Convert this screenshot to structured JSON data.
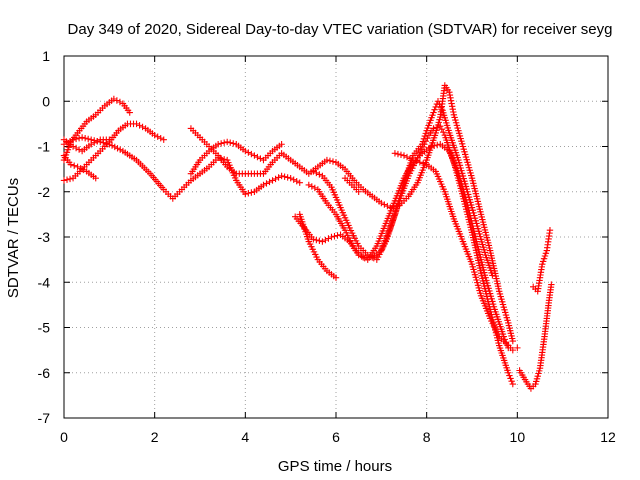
{
  "chart_data": {
    "type": "scatter",
    "title": "Day 349 of 2020, Sidereal Day-to-day VTEC variation (SDTVAR) for receiver seyg",
    "xlabel": "GPS time / hours",
    "ylabel": "SDTVAR / TECUs",
    "xlim": [
      0,
      12
    ],
    "ylim": [
      -7,
      1
    ],
    "xticks": [
      "0",
      "2",
      "4",
      "6",
      "8",
      "10",
      "12"
    ],
    "yticks": [
      "1",
      "0",
      "-1",
      "-2",
      "-3",
      "-4",
      "-5",
      "-6",
      "-7"
    ],
    "grid": true,
    "legend": "none",
    "marker": "+",
    "color": "#ff0000",
    "series": [
      {
        "points": [
          [
            0.0,
            -1.75
          ],
          [
            0.2,
            -1.7
          ],
          [
            0.4,
            -1.5
          ],
          [
            0.6,
            -1.3
          ],
          [
            0.8,
            -1.1
          ],
          [
            1.0,
            -0.9
          ],
          [
            1.2,
            -0.65
          ],
          [
            1.4,
            -0.5
          ],
          [
            1.6,
            -0.5
          ],
          [
            1.8,
            -0.6
          ],
          [
            2.0,
            -0.75
          ],
          [
            2.2,
            -0.85
          ]
        ]
      },
      {
        "points": [
          [
            0.0,
            -1.3
          ],
          [
            0.15,
            -0.9
          ],
          [
            0.3,
            -0.7
          ],
          [
            0.5,
            -0.45
          ],
          [
            0.7,
            -0.3
          ],
          [
            0.9,
            -0.1
          ],
          [
            1.1,
            0.05
          ],
          [
            1.3,
            -0.05
          ],
          [
            1.45,
            -0.25
          ]
        ]
      },
      {
        "points": [
          [
            0.0,
            -1.2
          ],
          [
            0.15,
            -1.4
          ],
          [
            0.3,
            -1.45
          ],
          [
            0.5,
            -1.55
          ],
          [
            0.7,
            -1.7
          ]
        ]
      },
      {
        "points": [
          [
            0.0,
            -0.95
          ],
          [
            0.2,
            -0.85
          ],
          [
            0.4,
            -0.8
          ],
          [
            0.6,
            -0.85
          ],
          [
            0.8,
            -0.9
          ],
          [
            1.0,
            -0.95
          ],
          [
            1.3,
            -1.1
          ],
          [
            1.6,
            -1.3
          ],
          [
            1.9,
            -1.6
          ],
          [
            2.2,
            -1.95
          ],
          [
            2.4,
            -2.15
          ],
          [
            2.6,
            -1.95
          ],
          [
            2.8,
            -1.75
          ],
          [
            3.0,
            -1.6
          ],
          [
            3.2,
            -1.45
          ],
          [
            3.4,
            -1.25
          ],
          [
            3.6,
            -1.3
          ],
          [
            3.8,
            -1.75
          ],
          [
            4.0,
            -2.05
          ],
          [
            4.2,
            -2.0
          ],
          [
            4.4,
            -1.85
          ],
          [
            4.6,
            -1.75
          ],
          [
            4.8,
            -1.65
          ],
          [
            5.0,
            -1.7
          ],
          [
            5.2,
            -1.8
          ]
        ]
      },
      {
        "points": [
          [
            0.0,
            -0.85
          ],
          [
            0.2,
            -1.0
          ],
          [
            0.4,
            -1.1
          ],
          [
            0.6,
            -0.95
          ],
          [
            0.8,
            -0.85
          ],
          [
            1.0,
            -0.85
          ]
        ]
      },
      {
        "points": [
          [
            2.8,
            -0.6
          ],
          [
            3.0,
            -0.8
          ],
          [
            3.2,
            -1.0
          ],
          [
            3.4,
            -1.2
          ],
          [
            3.6,
            -1.45
          ],
          [
            3.8,
            -1.6
          ],
          [
            4.0,
            -1.6
          ],
          [
            4.2,
            -1.6
          ],
          [
            4.4,
            -1.6
          ],
          [
            4.6,
            -1.35
          ],
          [
            4.8,
            -1.15
          ],
          [
            5.0,
            -1.3
          ],
          [
            5.2,
            -1.45
          ],
          [
            5.4,
            -1.6
          ],
          [
            5.6,
            -1.45
          ],
          [
            5.8,
            -1.3
          ],
          [
            6.0,
            -1.35
          ],
          [
            6.2,
            -1.5
          ],
          [
            6.4,
            -1.75
          ],
          [
            6.6,
            -1.95
          ],
          [
            6.8,
            -2.1
          ],
          [
            7.0,
            -2.25
          ],
          [
            7.2,
            -2.35
          ],
          [
            7.4,
            -2.3
          ],
          [
            7.6,
            -2.1
          ],
          [
            7.8,
            -1.8
          ],
          [
            8.0,
            -1.3
          ],
          [
            8.2,
            -0.7
          ],
          [
            8.3,
            -0.35
          ],
          [
            8.4,
            0.35
          ],
          [
            8.5,
            0.2
          ],
          [
            8.6,
            -0.3
          ],
          [
            8.8,
            -1.0
          ],
          [
            9.0,
            -1.7
          ],
          [
            9.2,
            -2.5
          ],
          [
            9.4,
            -3.3
          ],
          [
            9.6,
            -4.2
          ],
          [
            9.8,
            -4.9
          ],
          [
            9.9,
            -5.3
          ]
        ]
      },
      {
        "points": [
          [
            2.8,
            -1.6
          ],
          [
            3.0,
            -1.3
          ],
          [
            3.2,
            -1.1
          ],
          [
            3.4,
            -0.95
          ],
          [
            3.6,
            -0.9
          ],
          [
            3.8,
            -0.95
          ],
          [
            4.0,
            -1.1
          ],
          [
            4.2,
            -1.2
          ],
          [
            4.4,
            -1.3
          ],
          [
            4.6,
            -1.1
          ],
          [
            4.8,
            -0.95
          ]
        ]
      },
      {
        "points": [
          [
            5.1,
            -2.55
          ],
          [
            5.3,
            -2.8
          ],
          [
            5.5,
            -3.05
          ],
          [
            5.7,
            -3.1
          ],
          [
            5.9,
            -3.0
          ],
          [
            6.1,
            -2.95
          ],
          [
            6.3,
            -3.1
          ],
          [
            6.5,
            -3.4
          ],
          [
            6.7,
            -3.5
          ],
          [
            6.9,
            -3.2
          ],
          [
            7.1,
            -2.7
          ],
          [
            7.3,
            -2.2
          ],
          [
            7.5,
            -1.7
          ],
          [
            7.7,
            -1.35
          ],
          [
            7.9,
            -1.15
          ],
          [
            8.1,
            -1.0
          ],
          [
            8.3,
            -0.95
          ],
          [
            8.5,
            -1.1
          ],
          [
            8.7,
            -1.6
          ],
          [
            8.9,
            -2.3
          ],
          [
            9.1,
            -3.1
          ],
          [
            9.3,
            -3.9
          ],
          [
            9.5,
            -4.6
          ],
          [
            9.7,
            -5.2
          ],
          [
            9.8,
            -5.45
          ]
        ]
      },
      {
        "points": [
          [
            5.2,
            -2.5
          ],
          [
            5.4,
            -3.1
          ],
          [
            5.6,
            -3.5
          ],
          [
            5.8,
            -3.75
          ],
          [
            6.0,
            -3.9
          ]
        ]
      },
      {
        "points": [
          [
            5.4,
            -1.85
          ],
          [
            5.6,
            -1.95
          ],
          [
            5.8,
            -2.25
          ],
          [
            6.0,
            -2.5
          ],
          [
            6.2,
            -2.85
          ],
          [
            6.4,
            -3.25
          ],
          [
            6.6,
            -3.45
          ],
          [
            6.8,
            -3.45
          ],
          [
            7.0,
            -3.3
          ],
          [
            7.2,
            -2.8
          ],
          [
            7.4,
            -2.2
          ],
          [
            7.6,
            -1.65
          ],
          [
            7.8,
            -1.25
          ],
          [
            7.95,
            -0.95
          ],
          [
            8.05,
            -0.75
          ],
          [
            8.15,
            -0.6
          ],
          [
            8.3,
            -0.55
          ],
          [
            8.4,
            -0.75
          ],
          [
            8.6,
            -1.35
          ],
          [
            8.8,
            -2.1
          ],
          [
            9.0,
            -2.9
          ],
          [
            9.2,
            -3.8
          ],
          [
            9.4,
            -4.6
          ],
          [
            9.6,
            -5.4
          ],
          [
            9.8,
            -6.0
          ],
          [
            9.9,
            -6.25
          ]
        ]
      },
      {
        "points": [
          [
            5.5,
            -1.55
          ],
          [
            5.7,
            -1.65
          ],
          [
            5.9,
            -1.9
          ],
          [
            6.1,
            -2.35
          ],
          [
            6.3,
            -2.8
          ],
          [
            6.5,
            -3.2
          ],
          [
            6.7,
            -3.4
          ],
          [
            6.9,
            -3.5
          ],
          [
            7.1,
            -3.1
          ],
          [
            7.3,
            -2.5
          ],
          [
            7.5,
            -1.8
          ],
          [
            7.7,
            -1.2
          ],
          [
            7.9,
            -0.95
          ],
          [
            8.0,
            -0.65
          ],
          [
            8.15,
            -0.25
          ],
          [
            8.25,
            0.0
          ],
          [
            8.35,
            -0.2
          ],
          [
            8.5,
            -0.7
          ],
          [
            8.7,
            -1.3
          ],
          [
            8.9,
            -2.0
          ],
          [
            9.1,
            -2.7
          ],
          [
            9.3,
            -3.4
          ],
          [
            9.45,
            -3.85
          ]
        ]
      },
      {
        "points": [
          [
            6.2,
            -1.7
          ],
          [
            6.3,
            -1.8
          ],
          [
            6.4,
            -1.9
          ],
          [
            6.5,
            -2.0
          ]
        ]
      },
      {
        "points": [
          [
            7.3,
            -1.15
          ],
          [
            7.5,
            -1.2
          ],
          [
            7.7,
            -1.3
          ],
          [
            7.85,
            -1.35
          ],
          [
            8.0,
            -1.4
          ],
          [
            8.2,
            -1.55
          ],
          [
            8.4,
            -2.0
          ],
          [
            8.6,
            -2.6
          ],
          [
            8.8,
            -3.1
          ],
          [
            9.0,
            -3.6
          ],
          [
            9.2,
            -4.3
          ],
          [
            9.4,
            -4.8
          ],
          [
            9.6,
            -5.2
          ],
          [
            9.8,
            -5.4
          ],
          [
            9.9,
            -5.5
          ],
          [
            10.0,
            -5.45
          ]
        ]
      },
      {
        "points": [
          [
            10.05,
            -5.95
          ],
          [
            10.2,
            -6.2
          ],
          [
            10.3,
            -6.35
          ],
          [
            10.4,
            -6.25
          ],
          [
            10.5,
            -5.9
          ],
          [
            10.6,
            -5.2
          ],
          [
            10.7,
            -4.4
          ],
          [
            10.75,
            -4.05
          ]
        ]
      },
      {
        "points": [
          [
            10.35,
            -4.1
          ],
          [
            10.45,
            -4.2
          ],
          [
            10.55,
            -3.6
          ],
          [
            10.65,
            -3.3
          ],
          [
            10.72,
            -2.85
          ]
        ]
      }
    ]
  }
}
